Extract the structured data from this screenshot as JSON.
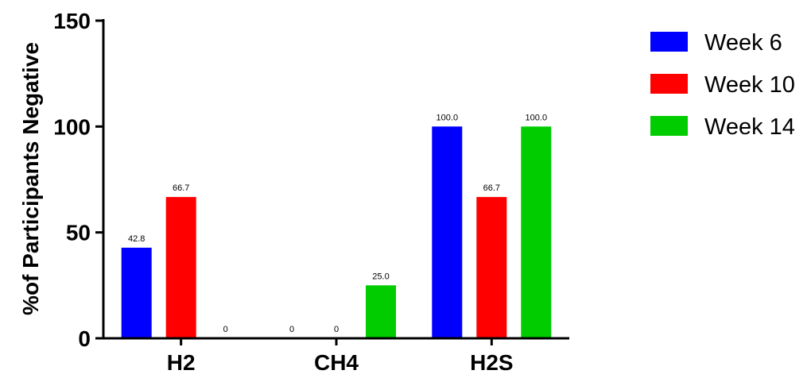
{
  "chart_data": {
    "type": "bar",
    "categories": [
      "H2",
      "CH4",
      "H2S"
    ],
    "series": [
      {
        "name": "Week 6",
        "values": [
          42.8,
          0,
          100.0
        ],
        "labels": [
          "42.8",
          "0",
          "100.0"
        ],
        "color": "#0000FF"
      },
      {
        "name": "Week 10",
        "values": [
          66.7,
          0,
          66.7
        ],
        "labels": [
          "66.7",
          "0",
          "66.7"
        ],
        "color": "#FF0000"
      },
      {
        "name": "Week 14",
        "values": [
          0,
          25.0,
          100.0
        ],
        "labels": [
          "0",
          "25.0",
          "100.0"
        ],
        "color": "#00CC00"
      }
    ],
    "ylabel": "%of Participants Negative",
    "xlabel": "",
    "ylim": [
      0,
      150
    ],
    "yticks": [
      0,
      50,
      100,
      150
    ],
    "ytick_labels": [
      "0",
      "50",
      "100",
      "150"
    ],
    "grid": false,
    "legend_position": "top-right"
  }
}
